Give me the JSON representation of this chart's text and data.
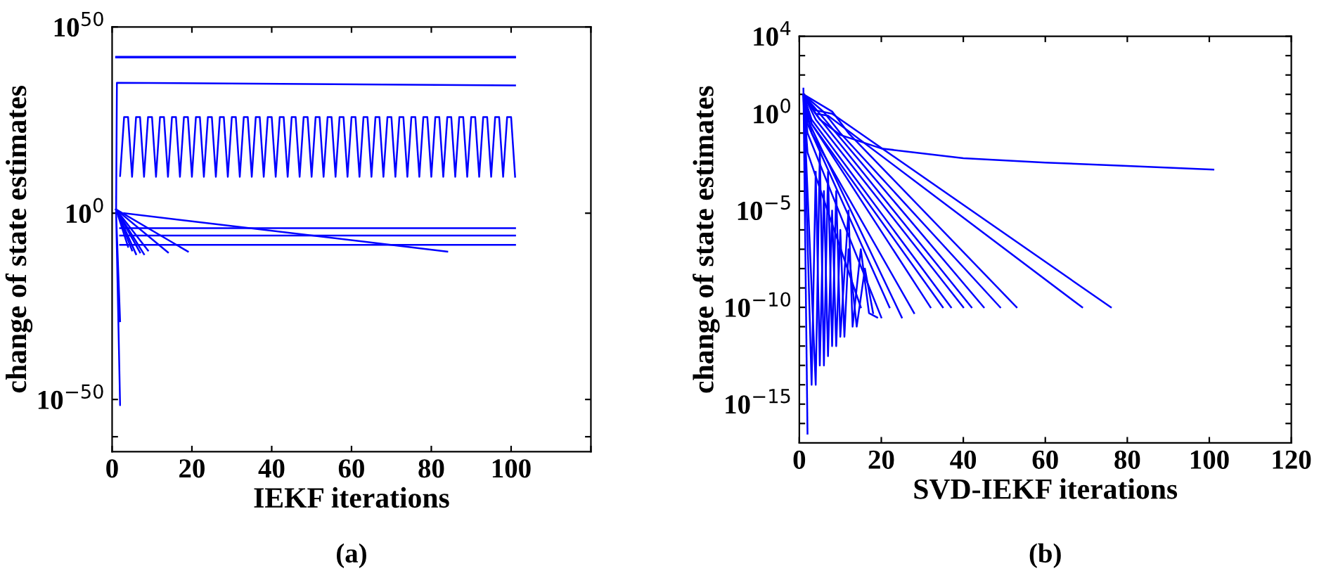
{
  "chart_data": [
    {
      "type": "line",
      "log": "y",
      "xlabel": "IEKF iterations",
      "ylabel": "change of state estimates",
      "annotations": [
        "(a)"
      ],
      "marker": "none",
      "line_style": "solid",
      "xlim": [
        0,
        120
      ],
      "xticks": [
        0,
        20,
        40,
        60,
        80,
        100,
        {
          "value": 120,
          "label": null
        }
      ],
      "ylim": [
        1e-64,
        1e+50
      ],
      "yticks": [
        {
          "value": 1e-60,
          "label": null
        },
        {
          "value": 1e-50,
          "label": "10$^{−50}$"
        },
        {
          "value": 1,
          "label": "10$^{0}$"
        },
        {
          "value": 1e+50,
          "label": "10$^{50}$"
        }
      ],
      "series": [
        {
          "color": "#0000ff",
          "x": [
            1,
            101
          ],
          "values": [
            1e+42,
            1e+42
          ]
        },
        {
          "color": "#0000ff",
          "x": [
            1,
            101
          ],
          "values": [
            6e+41,
            6e+41
          ]
        },
        {
          "color": "#0000ff",
          "x": [
            2,
            1,
            2,
            1,
            1.2,
            101
          ],
          "values": [
            1e-29,
            1,
            3e-52,
            1,
            1e+35,
            2e+34
          ]
        },
        {
          "color": "#0000ff",
          "x": [
            2,
            3,
            4,
            5,
            6,
            7,
            8,
            9,
            10,
            11,
            12,
            13,
            14,
            15,
            16,
            17,
            18,
            19,
            20,
            21,
            22,
            23,
            24,
            25,
            26,
            27,
            28,
            29,
            30,
            31,
            32,
            33,
            34,
            35,
            36,
            37,
            38,
            39,
            40,
            41,
            42,
            43,
            44,
            45,
            46,
            47,
            48,
            49,
            50,
            51,
            52,
            53,
            54,
            55,
            56,
            57,
            58,
            59,
            60,
            61,
            62,
            63,
            64,
            65,
            66,
            67,
            68,
            69,
            70,
            71,
            72,
            73,
            74,
            75,
            76,
            77,
            78,
            79,
            80,
            81,
            82,
            83,
            84,
            85,
            86,
            87,
            88,
            89,
            90,
            91,
            92,
            93,
            94,
            95,
            96,
            97,
            98,
            99,
            100,
            101
          ],
          "values": [
            10000000000.0,
            6e+25,
            6e+25,
            6000000000.0,
            6e+25,
            6e+25,
            6000000000.0,
            6e+25,
            6e+25,
            6000000000.0,
            6e+25,
            6e+25,
            6000000000.0,
            6e+25,
            6e+25,
            6000000000.0,
            6e+25,
            6e+25,
            6000000000.0,
            6e+25,
            6e+25,
            6000000000.0,
            6e+25,
            6e+25,
            6000000000.0,
            6e+25,
            6e+25,
            6000000000.0,
            6e+25,
            6e+25,
            6000000000.0,
            6e+25,
            6e+25,
            6000000000.0,
            6e+25,
            6e+25,
            6000000000.0,
            6e+25,
            6e+25,
            6000000000.0,
            6e+25,
            6e+25,
            6000000000.0,
            6e+25,
            6e+25,
            6000000000.0,
            6e+25,
            6e+25,
            6000000000.0,
            6e+25,
            6e+25,
            6000000000.0,
            6e+25,
            6e+25,
            6000000000.0,
            6e+25,
            6e+25,
            6000000000.0,
            6e+25,
            6e+25,
            6000000000.0,
            6e+25,
            6e+25,
            6000000000.0,
            6e+25,
            6e+25,
            6000000000.0,
            6e+25,
            6e+25,
            6000000000.0,
            6e+25,
            6e+25,
            6000000000.0,
            6e+25,
            6e+25,
            6000000000.0,
            6e+25,
            6e+25,
            6000000000.0,
            6e+25,
            6e+25,
            6000000000.0,
            6e+25,
            6e+25,
            6000000000.0,
            6e+25,
            6e+25,
            6000000000.0,
            6e+25,
            6e+25,
            6000000000.0,
            6e+25,
            6e+25,
            6000000000.0,
            6e+25,
            6e+25,
            6000000000.0,
            6e+25,
            6e+25,
            6000000000.0
          ]
        },
        {
          "color": "#0000ff",
          "x": [
            2,
            101
          ],
          "values": [
            0.0001,
            0.0001
          ]
        },
        {
          "color": "#0000ff",
          "x": [
            2,
            101
          ],
          "values": [
            1e-06,
            1e-06
          ]
        },
        {
          "color": "#0000ff",
          "x": [
            2,
            101
          ],
          "values": [
            3e-09,
            3e-09
          ]
        },
        {
          "color": "#0000ff",
          "x": [
            3,
            84
          ],
          "values": [
            1,
            5e-11
          ]
        },
        {
          "color": "#0000ff",
          "x": [
            1,
            4
          ],
          "values": [
            10,
            1e-09
          ]
        },
        {
          "color": "#0000ff",
          "x": [
            1,
            5
          ],
          "values": [
            10,
            1e-10
          ]
        },
        {
          "color": "#0000ff",
          "x": [
            1,
            6
          ],
          "values": [
            10,
            1e-11
          ]
        },
        {
          "color": "#0000ff",
          "x": [
            1,
            7
          ],
          "values": [
            10,
            3e-11
          ]
        },
        {
          "color": "#0000ff",
          "x": [
            1,
            8
          ],
          "values": [
            10,
            1e-11
          ]
        },
        {
          "color": "#0000ff",
          "x": [
            1,
            9
          ],
          "values": [
            10,
            1e-10
          ]
        },
        {
          "color": "#0000ff",
          "x": [
            1,
            14
          ],
          "values": [
            10,
            3e-11
          ]
        },
        {
          "color": "#0000ff",
          "x": [
            1,
            19
          ],
          "values": [
            10,
            5e-11
          ]
        }
      ]
    },
    {
      "type": "line",
      "log": "y",
      "xlabel": "SVD-IEKF iterations",
      "ylabel": "change of state estimates",
      "annotations": [
        "(b)"
      ],
      "marker": "none",
      "line_style": "solid",
      "xlim": [
        0,
        120
      ],
      "xticks": [
        0,
        20,
        40,
        60,
        80,
        100,
        120
      ],
      "ylim": [
        1e-17,
        10000.0
      ],
      "yticks": [
        {
          "value": 1e-16,
          "label": null
        },
        {
          "value": 1e-15,
          "label": "10$^{−15}$"
        },
        {
          "value": 1e-14,
          "label": null
        },
        {
          "value": 1e-13,
          "label": null
        },
        {
          "value": 1e-12,
          "label": null
        },
        {
          "value": 1e-11,
          "label": null
        },
        {
          "value": 1e-10,
          "label": "10$^{−10}$"
        },
        {
          "value": 1e-09,
          "label": null
        },
        {
          "value": 1e-08,
          "label": null
        },
        {
          "value": 1e-07,
          "label": null
        },
        {
          "value": 1e-06,
          "label": null
        },
        {
          "value": 1e-05,
          "label": "10$^{−5}$"
        },
        {
          "value": 0.0001,
          "label": null
        },
        {
          "value": 0.001,
          "label": null
        },
        {
          "value": 0.01,
          "label": null
        },
        {
          "value": 0.1,
          "label": null
        },
        {
          "value": 1,
          "label": "10$^{0}$"
        },
        {
          "value": 10,
          "label": null
        },
        {
          "value": 100,
          "label": null
        },
        {
          "value": 1000,
          "label": null
        },
        {
          "value": 10000.0,
          "label": "10$^{4}$"
        }
      ],
      "series": [
        {
          "color": "#0000ff",
          "x": [
            1,
            2,
            5,
            10,
            20,
            40,
            60,
            80,
            101
          ],
          "values": [
            10,
            4,
            0.5,
            0.08,
            0.016,
            0.005,
            0.003,
            0.002,
            0.0013
          ]
        },
        {
          "color": "#0000ff",
          "x": [
            1,
            4,
            8,
            76
          ],
          "values": [
            10,
            1.5,
            1,
            1e-10
          ]
        },
        {
          "color": "#0000ff",
          "x": [
            1,
            4,
            7,
            69
          ],
          "values": [
            10,
            1,
            0.8,
            1e-10
          ]
        },
        {
          "color": "#0000ff",
          "x": [
            1,
            8,
            12,
            53
          ],
          "values": [
            10,
            1.3,
            0.1,
            1e-10
          ]
        },
        {
          "color": "#0000ff",
          "x": [
            1,
            6,
            10,
            49
          ],
          "values": [
            10,
            1.2,
            0.1,
            1e-10
          ]
        },
        {
          "color": "#0000ff",
          "x": [
            1,
            5,
            45
          ],
          "values": [
            10,
            1,
            1e-10
          ]
        },
        {
          "color": "#0000ff",
          "x": [
            1,
            4,
            42
          ],
          "values": [
            10,
            1,
            1e-10
          ]
        },
        {
          "color": "#0000ff",
          "x": [
            1,
            4,
            40
          ],
          "values": [
            10,
            0.5,
            1e-10
          ]
        },
        {
          "color": "#0000ff",
          "x": [
            1,
            3,
            37
          ],
          "values": [
            10,
            0.5,
            1e-10
          ]
        },
        {
          "color": "#0000ff",
          "x": [
            1,
            3,
            35
          ],
          "values": [
            10,
            0.3,
            1e-10
          ]
        },
        {
          "color": "#0000ff",
          "x": [
            1,
            3,
            32
          ],
          "values": [
            10,
            0.3,
            1e-10
          ]
        },
        {
          "color": "#0000ff",
          "x": [
            1,
            3,
            28
          ],
          "values": [
            10,
            0.1,
            5e-11
          ]
        },
        {
          "color": "#0000ff",
          "x": [
            1,
            2,
            25
          ],
          "values": [
            10,
            0.5,
            3e-11
          ]
        },
        {
          "color": "#0000ff",
          "x": [
            1,
            2,
            22
          ],
          "values": [
            10,
            0.3,
            1e-10
          ]
        },
        {
          "color": "#0000ff",
          "x": [
            1,
            2,
            20
          ],
          "values": [
            10,
            0.1,
            3e-11
          ]
        },
        {
          "color": "#0000ff",
          "x": [
            1,
            2,
            15
          ],
          "values": [
            10,
            0.01,
            1e-10
          ]
        },
        {
          "color": "#0000ff",
          "x": [
            1,
            2
          ],
          "values": [
            20,
            3e-17
          ]
        },
        {
          "color": "#0000ff",
          "x": [
            1,
            3,
            4,
            5,
            6,
            7,
            8,
            9,
            10,
            11,
            12,
            14,
            16,
            18
          ],
          "values": [
            10,
            1e-14,
            0.001,
            1e-13,
            0.0001,
            3e-13,
            1e-05,
            1e-12,
            1e-06,
            3e-12,
            1e-07,
            1e-11,
            1e-08,
            5e-11
          ]
        },
        {
          "color": "#0000ff",
          "x": [
            1,
            4,
            5,
            6,
            7,
            8,
            9,
            10,
            12,
            13,
            15,
            17,
            19
          ],
          "values": [
            10,
            1e-14,
            0.01,
            1e-13,
            0.001,
            1e-12,
            0.0001,
            3e-12,
            1e-05,
            1e-11,
            1e-07,
            5e-11,
            3e-11
          ]
        }
      ]
    }
  ]
}
